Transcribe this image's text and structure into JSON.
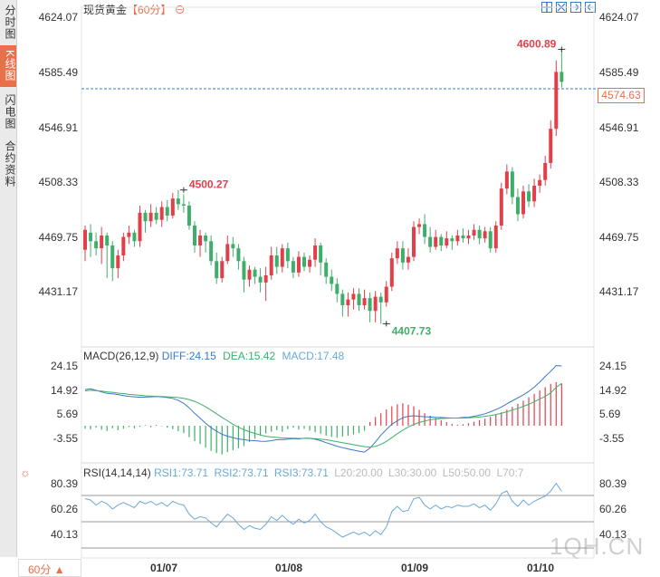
{
  "sidebar": {
    "tabs": [
      {
        "label": "分时图",
        "active": false
      },
      {
        "label": "K线图",
        "active": true
      },
      {
        "label": "闪电图",
        "active": false
      },
      {
        "label": "合约资料",
        "active": false
      }
    ]
  },
  "header": {
    "title": "现货黄金",
    "period_tag": "【60分】"
  },
  "price_axis": {
    "ticks": [
      "4624.07",
      "4585.49",
      "4546.91",
      "4508.33",
      "4469.75",
      "4431.17"
    ]
  },
  "current_price": "4574.63",
  "annotations": {
    "high": "4600.89",
    "mid_high": "4500.27",
    "low": "4407.73"
  },
  "macd": {
    "label": "MACD(26,12,9)",
    "diff": "DIFF:24.15",
    "dea": "DEA:15.42",
    "macd": "MACD:17.48",
    "ticks": [
      "24.15",
      "14.92",
      "5.69",
      "-3.55"
    ]
  },
  "rsi": {
    "label": "RSI(14,14,14)",
    "rsi1": "RSI1:73.71",
    "rsi2": "RSI2:73.71",
    "rsi3": "RSI3:73.71",
    "l20": "L20:20.00",
    "l30": "L30:30.00",
    "l50": "L50:50.00",
    "l70": "L70:7",
    "ticks_left": [
      "80.39",
      "60.26",
      "40.13"
    ],
    "ticks_right": [
      "80.39",
      "60.26",
      "40.13"
    ]
  },
  "x_axis": {
    "labels": [
      "01/07",
      "01/08",
      "01/09",
      "01/10"
    ]
  },
  "period_select": "60分",
  "watermark": "1QH.CN",
  "colors": {
    "up": "#e0404a",
    "down": "#3fae6a",
    "accent": "#e8704a",
    "diff": "#3a78c8",
    "dea": "#3fae6a"
  }
}
